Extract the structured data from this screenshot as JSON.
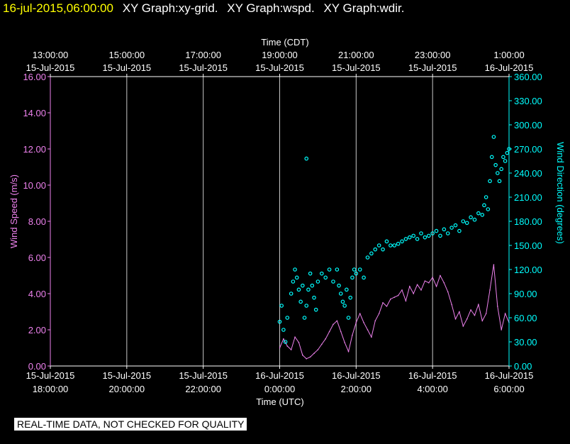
{
  "header": {
    "timestamp": "16-jul-2015,06:00:00",
    "graphs": [
      "XY Graph:xy-grid.",
      "XY Graph:wspd.",
      "XY Graph:wdir."
    ]
  },
  "notice": "REAL-TIME DATA, NOT CHECKED FOR QUALITY",
  "colors": {
    "background": "#000000",
    "axis": "#ffffff",
    "wspd": "#ee82ee",
    "wdir": "#00ffff",
    "timestamp": "#ffff00"
  },
  "chart_data": {
    "type": "line",
    "top_axis": {
      "title": "Time (CDT)",
      "ticks": [
        {
          "hour": 0,
          "time": "13:00:00",
          "date": "15-Jul-2015"
        },
        {
          "hour": 2,
          "time": "15:00:00",
          "date": "15-Jul-2015"
        },
        {
          "hour": 4,
          "time": "17:00:00",
          "date": "15-Jul-2015"
        },
        {
          "hour": 6,
          "time": "19:00:00",
          "date": "15-Jul-2015"
        },
        {
          "hour": 8,
          "time": "21:00:00",
          "date": "15-Jul-2015"
        },
        {
          "hour": 10,
          "time": "23:00:00",
          "date": "15-Jul-2015"
        },
        {
          "hour": 12,
          "time": "1:00:00",
          "date": "16-Jul-2015"
        }
      ]
    },
    "bottom_axis": {
      "title": "Time (UTC)",
      "ticks": [
        {
          "hour": 0,
          "date": "15-Jul-2015",
          "time": "18:00:00"
        },
        {
          "hour": 2,
          "date": "15-Jul-2015",
          "time": "20:00:00"
        },
        {
          "hour": 4,
          "date": "15-Jul-2015",
          "time": "22:00:00"
        },
        {
          "hour": 6,
          "date": "16-Jul-2015",
          "time": "0:00:00"
        },
        {
          "hour": 8,
          "date": "16-Jul-2015",
          "time": "2:00:00"
        },
        {
          "hour": 10,
          "date": "16-Jul-2015",
          "time": "4:00:00"
        },
        {
          "hour": 12,
          "date": "16-Jul-2015",
          "time": "6:00:00"
        }
      ]
    },
    "xlim": [
      0,
      12
    ],
    "x_unit": "hours after 15-Jul-2015 18:00:00 UTC",
    "left_axis": {
      "title": "Wind Speed (m/s)",
      "ylim": [
        0,
        16
      ],
      "ticks": [
        "0.00",
        "2.00",
        "4.00",
        "6.00",
        "8.00",
        "10.00",
        "12.00",
        "14.00",
        "16.00"
      ]
    },
    "right_axis": {
      "title": "Wind Direction (degrees)",
      "ylim": [
        0,
        360
      ],
      "ticks": [
        "0.00",
        "30.00",
        "60.00",
        "90.00",
        "120.00",
        "150.00",
        "180.00",
        "210.00",
        "240.00",
        "270.00",
        "300.00",
        "330.00",
        "360.00"
      ]
    },
    "grid": "vertical lines at each tick",
    "series": [
      {
        "kind": "wspd",
        "style": "line",
        "x": [
          6.0,
          6.1,
          6.2,
          6.3,
          6.4,
          6.5,
          6.6,
          6.7,
          6.8,
          6.9,
          7.0,
          7.1,
          7.2,
          7.3,
          7.4,
          7.5,
          7.6,
          7.7,
          7.8,
          7.9,
          8.0,
          8.1,
          8.2,
          8.3,
          8.4,
          8.5,
          8.6,
          8.7,
          8.8,
          8.9,
          9.0,
          9.1,
          9.2,
          9.3,
          9.4,
          9.5,
          9.6,
          9.7,
          9.8,
          9.9,
          10.0,
          10.1,
          10.2,
          10.3,
          10.4,
          10.5,
          10.6,
          10.7,
          10.8,
          10.9,
          11.0,
          11.1,
          11.2,
          11.3,
          11.4,
          11.5,
          11.6,
          11.7,
          11.8,
          11.9,
          12.0
        ],
        "values": [
          1.0,
          1.5,
          1.1,
          0.9,
          1.6,
          1.3,
          0.6,
          0.4,
          0.5,
          0.7,
          0.9,
          1.2,
          1.5,
          1.9,
          2.3,
          2.5,
          1.9,
          1.3,
          0.8,
          1.7,
          2.4,
          2.9,
          2.4,
          2.0,
          1.6,
          2.5,
          2.9,
          3.5,
          3.3,
          3.7,
          3.8,
          3.9,
          4.2,
          3.6,
          4.4,
          4.0,
          4.5,
          4.2,
          4.7,
          4.6,
          4.9,
          4.4,
          5.0,
          4.6,
          4.1,
          3.4,
          2.6,
          3.0,
          2.2,
          2.6,
          3.1,
          2.8,
          3.4,
          2.5,
          2.9,
          4.2,
          5.6,
          3.3,
          2.0,
          2.9,
          2.4
        ]
      },
      {
        "kind": "wdir",
        "style": "points",
        "x": [
          6.0,
          6.05,
          6.1,
          6.15,
          6.2,
          6.3,
          6.35,
          6.4,
          6.45,
          6.5,
          6.55,
          6.6,
          6.65,
          6.7,
          6.75,
          6.8,
          6.85,
          6.9,
          6.95,
          7.0,
          7.1,
          7.2,
          7.3,
          7.4,
          7.5,
          7.55,
          7.6,
          7.65,
          7.7,
          7.75,
          7.8,
          7.85,
          7.9,
          7.95,
          8.0,
          8.1,
          8.2,
          8.3,
          8.4,
          8.5,
          8.6,
          8.7,
          8.8,
          8.9,
          9.0,
          9.1,
          9.2,
          9.3,
          9.4,
          9.5,
          9.6,
          9.7,
          9.8,
          9.9,
          10.0,
          10.1,
          10.2,
          10.3,
          10.4,
          10.5,
          10.6,
          10.7,
          10.8,
          10.9,
          11.0,
          11.1,
          11.2,
          11.3,
          11.35,
          11.4,
          11.45,
          11.5,
          11.55,
          11.6,
          11.65,
          11.7,
          11.75,
          11.8,
          11.85,
          11.9,
          11.95,
          12.0,
          6.7
        ],
        "values": [
          55,
          75,
          45,
          30,
          60,
          90,
          105,
          120,
          110,
          95,
          80,
          100,
          60,
          75,
          95,
          115,
          100,
          85,
          70,
          105,
          115,
          110,
          120,
          105,
          120,
          100,
          90,
          80,
          75,
          95,
          60,
          85,
          110,
          120,
          115,
          120,
          110,
          135,
          140,
          145,
          150,
          145,
          155,
          150,
          150,
          152,
          155,
          158,
          160,
          162,
          158,
          165,
          160,
          162,
          165,
          168,
          162,
          170,
          165,
          172,
          175,
          168,
          180,
          178,
          185,
          182,
          190,
          188,
          200,
          210,
          195,
          230,
          260,
          285,
          250,
          240,
          230,
          245,
          260,
          255,
          265,
          270,
          258
        ]
      }
    ]
  }
}
